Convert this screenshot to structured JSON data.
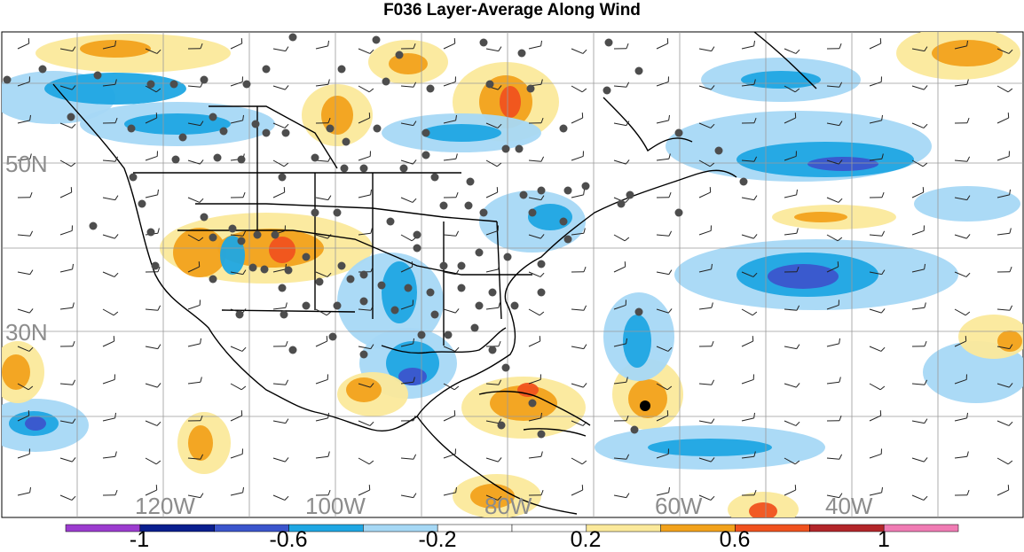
{
  "title": "F036 Layer-Average Along Wind",
  "lat_labels": [
    "50N",
    "30N"
  ],
  "lon_labels": [
    "120W",
    "100W",
    "80W",
    "60W",
    "40W"
  ],
  "colorbar": {
    "tick_labels": [
      "-1",
      "-0.6",
      "-0.2",
      "0.2",
      "0.6",
      "1"
    ],
    "colors": [
      "#9c3ccf",
      "#0a1f8f",
      "#3b55cc",
      "#1fa7e3",
      "#a6d8f5",
      "#ffffff",
      "#ffffff",
      "#fbe99b",
      "#f2a21c",
      "#f0521f",
      "#b3262a",
      "#f07cb4"
    ]
  },
  "palette": {
    "light_blue": "#a6d8f5",
    "mid_blue": "#1fa7e3",
    "dark_blue": "#3b55cc",
    "light_yellow": "#fbe99b",
    "orange": "#f2a21c",
    "red_orange": "#f0521f"
  },
  "legend_marker": "station-dot"
}
